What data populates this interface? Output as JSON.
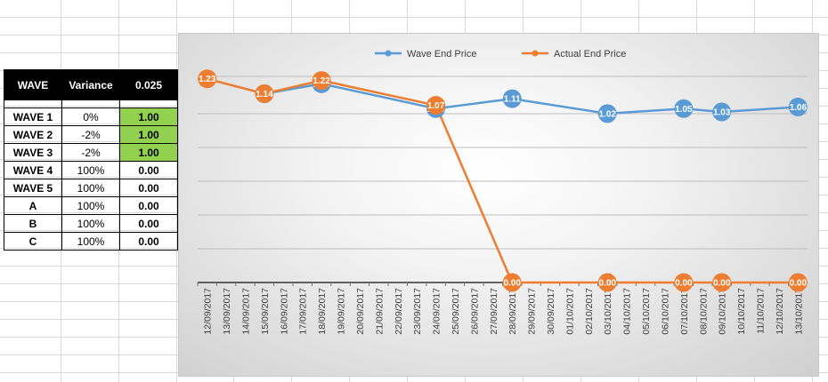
{
  "table": {
    "header": {
      "col1": "WAVE",
      "col2": "Variance",
      "col3": "0.025"
    },
    "rows": [
      {
        "wave": "WAVE 1",
        "variance": "0%",
        "value": "1.00",
        "highlight": true
      },
      {
        "wave": "WAVE 2",
        "variance": "-2%",
        "value": "1.00",
        "highlight": true
      },
      {
        "wave": "WAVE 3",
        "variance": "-2%",
        "value": "1.00",
        "highlight": true
      },
      {
        "wave": "WAVE 4",
        "variance": "100%",
        "value": "0.00",
        "highlight": false
      },
      {
        "wave": "WAVE 5",
        "variance": "100%",
        "value": "0.00",
        "highlight": false
      },
      {
        "wave": "A",
        "variance": "100%",
        "value": "0.00",
        "highlight": false
      },
      {
        "wave": "B",
        "variance": "100%",
        "value": "0.00",
        "highlight": false
      },
      {
        "wave": "C",
        "variance": "100%",
        "value": "0.00",
        "highlight": false
      }
    ],
    "highlight_color": "#92d050"
  },
  "chart_data": {
    "type": "line",
    "title": "",
    "categories": [
      "12/09/2017",
      "13/09/2017",
      "14/09/2017",
      "15/09/2017",
      "16/09/2017",
      "17/09/2017",
      "18/09/2017",
      "19/09/2017",
      "20/09/2017",
      "21/09/2017",
      "22/09/2017",
      "23/09/2017",
      "24/09/2017",
      "25/09/2017",
      "26/09/2017",
      "27/09/2017",
      "28/09/2017",
      "29/09/2017",
      "30/09/2017",
      "01/10/2017",
      "02/10/2017",
      "03/10/2017",
      "04/10/2017",
      "05/10/2017",
      "06/10/2017",
      "07/10/2017",
      "08/10/2017",
      "09/10/2017",
      "10/10/2017",
      "11/10/2017",
      "12/10/2017",
      "13/10/2017"
    ],
    "ylim": [
      0,
      1.25
    ],
    "legend_position": "top",
    "series": [
      {
        "name": "Wave End Price",
        "color": "#5b9bd5",
        "points": [
          {
            "x": "15/09/2017",
            "y": 1.14,
            "label": "1.14"
          },
          {
            "x": "18/09/2017",
            "y": 1.2,
            "label": "1.20"
          },
          {
            "x": "24/09/2017",
            "y": 1.05,
            "label": "1.05"
          },
          {
            "x": "28/09/2017",
            "y": 1.11,
            "label": "1.11"
          },
          {
            "x": "03/10/2017",
            "y": 1.02,
            "label": "1.02"
          },
          {
            "x": "07/10/2017",
            "y": 1.05,
            "label": "1.05"
          },
          {
            "x": "09/10/2017",
            "y": 1.03,
            "label": "1.03"
          },
          {
            "x": "13/10/2017",
            "y": 1.06,
            "label": "1.06"
          }
        ]
      },
      {
        "name": "Actual End Price",
        "color": "#ed7d31",
        "points": [
          {
            "x": "12/09/2017",
            "y": 1.23,
            "label": "1.23"
          },
          {
            "x": "15/09/2017",
            "y": 1.14,
            "label": "1.14"
          },
          {
            "x": "18/09/2017",
            "y": 1.22,
            "label": "1.22"
          },
          {
            "x": "24/09/2017",
            "y": 1.07,
            "label": "1.07"
          },
          {
            "x": "28/09/2017",
            "y": 0.0,
            "label": "0.00"
          },
          {
            "x": "03/10/2017",
            "y": 0.0,
            "label": "0.00"
          },
          {
            "x": "07/10/2017",
            "y": 0.0,
            "label": "0.00"
          },
          {
            "x": "09/10/2017",
            "y": 0.0,
            "label": "0.00"
          },
          {
            "x": "13/10/2017",
            "y": 0.0,
            "label": "0.00"
          }
        ]
      }
    ]
  }
}
